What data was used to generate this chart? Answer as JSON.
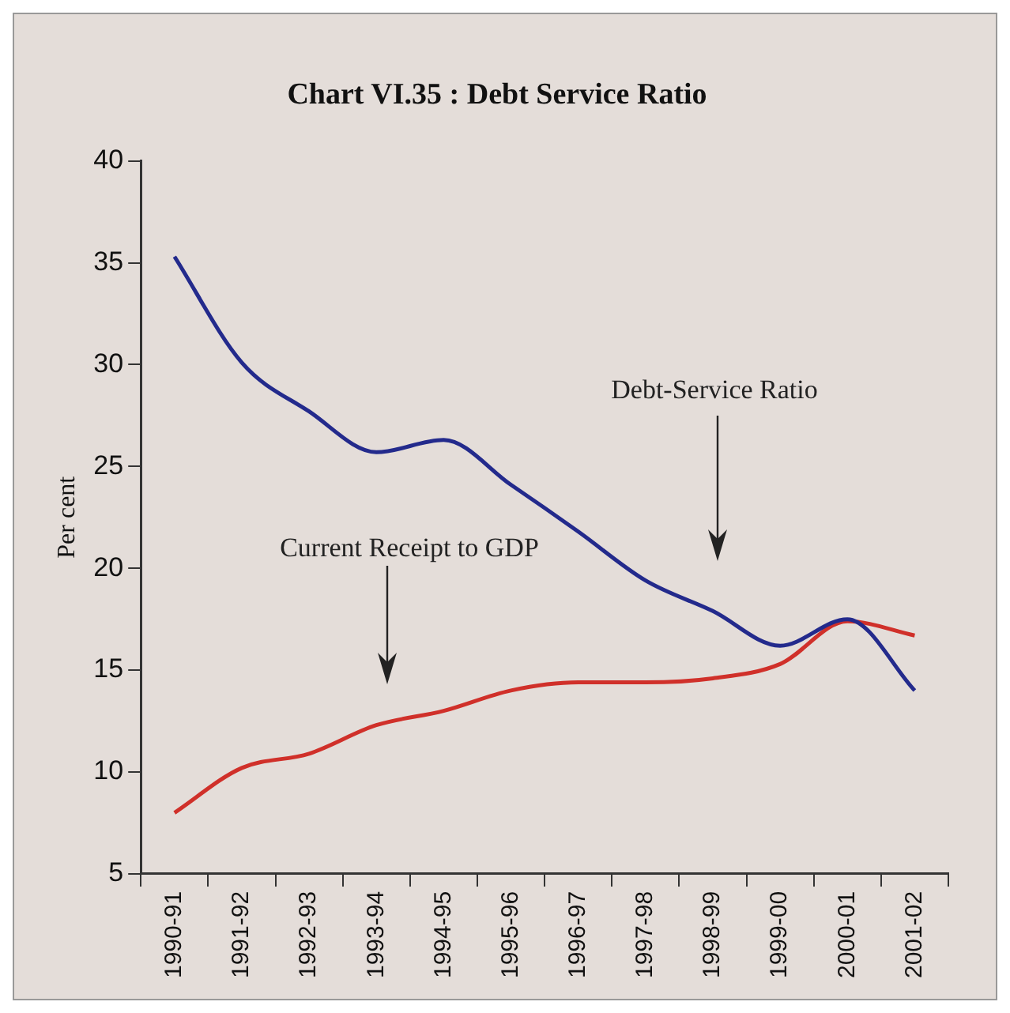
{
  "chart_data": {
    "type": "line",
    "title": "Chart VI.35 : Debt Service Ratio",
    "ylabel": "Per cent",
    "categories": [
      "1990-91",
      "1991-92",
      "1992-93",
      "1993-94",
      "1994-95",
      "1995-96",
      "1996-97",
      "1997-98",
      "1998-99",
      "1999-00",
      "2000-01",
      "2001-02"
    ],
    "series": [
      {
        "color": "#232a8c",
        "values": [
          35.3,
          30.1,
          27.7,
          25.7,
          26.3,
          24.1,
          21.8,
          19.4,
          17.9,
          16.2,
          17.5,
          14.0
        ]
      },
      {
        "color": "#d0302a",
        "values": [
          8.0,
          10.2,
          10.9,
          12.3,
          13.0,
          14.0,
          14.4,
          14.4,
          14.6,
          15.3,
          17.4,
          16.7
        ]
      }
    ],
    "annotations": [
      "Debt-Service Ratio",
      "Current Receipt to GDP"
    ],
    "ylim": [
      5,
      40
    ],
    "yticks": [
      5,
      10,
      15,
      20,
      25,
      30,
      35,
      40
    ],
    "grid": false,
    "legend": false,
    "marker": "none",
    "line_style": "solid"
  }
}
